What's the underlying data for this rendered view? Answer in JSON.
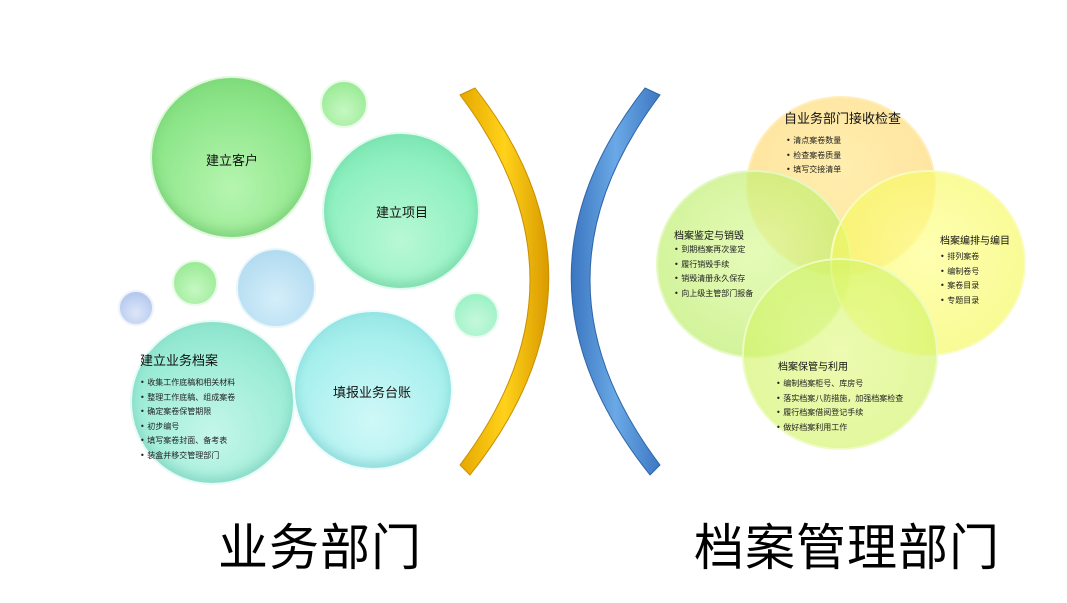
{
  "left": {
    "bubbles": {
      "b1": "建立客户",
      "b2": "建立项目",
      "b3": "填报业务台账"
    },
    "archive": {
      "title": "建立业务档案",
      "items": [
        "收集工作底稿和相关材料",
        "整理工作底稿、组成案卷",
        "确定案卷保管期限",
        "初步编号",
        "填写案卷封面、备考表",
        "装盒并移交管理部门"
      ]
    },
    "label": "业务部门"
  },
  "right": {
    "top": {
      "title": "自业务部门接收检查",
      "items": [
        "清点案卷数量",
        "检查案卷质量",
        "填写交接清单"
      ]
    },
    "left": {
      "title": "档案鉴定与销毁",
      "items": [
        "到期档案再次鉴定",
        "履行销毁手续",
        "销毁清册永久保存",
        "向上级主管部门报备"
      ]
    },
    "right": {
      "title": "档案编排与编目",
      "items": [
        "排列案卷",
        "编制卷号",
        "案卷目录",
        "专题目录"
      ]
    },
    "bottom": {
      "title": "档案保管与利用",
      "items": [
        "编制档案柜号、库房号",
        "落实档案八防措施，加强档案检查",
        "履行档案借阅登记手续",
        "做好档案利用工作"
      ]
    },
    "label": "档案管理部门"
  },
  "colors": {
    "green": "#8ee68a",
    "mint": "#8ff0c0",
    "cyan": "#a8f0ee",
    "blue": "#a9d6ee",
    "gold": "#f2c200",
    "arcBlue": "#4f8fd0",
    "yellow": "#ffff66",
    "orange": "#ffdd80",
    "lime": "#c8f060"
  }
}
